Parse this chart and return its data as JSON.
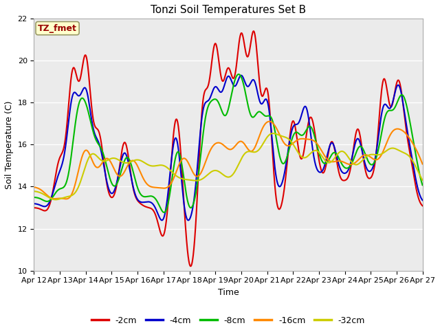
{
  "title": "Tonzi Soil Temperatures Set B",
  "xlabel": "Time",
  "ylabel": "Soil Temperature (C)",
  "ylim": [
    10,
    22
  ],
  "yticks": [
    10,
    12,
    14,
    16,
    18,
    20,
    22
  ],
  "x_tick_labels": [
    "Apr 12",
    "Apr 13",
    "Apr 14",
    "Apr 15",
    "Apr 16",
    "Apr 17",
    "Apr 18",
    "Apr 19",
    "Apr 20",
    "Apr 21",
    "Apr 22",
    "Apr 23",
    "Apr 24",
    "Apr 25",
    "Apr 26",
    "Apr 27"
  ],
  "series_colors": {
    "-2cm": "#dd0000",
    "-4cm": "#0000cc",
    "-8cm": "#00bb00",
    "-16cm": "#ff8800",
    "-32cm": "#cccc00"
  },
  "annotation_label": "TZ_fmet",
  "annotation_color": "#990000",
  "annotation_bg": "#ffffcc",
  "annotation_border": "#999966",
  "fig_facecolor": "#ffffff",
  "ax_facecolor": "#ebebeb",
  "grid_color": "#ffffff",
  "linewidth": 1.5,
  "title_fontsize": 11,
  "axis_fontsize": 9,
  "tick_fontsize": 8
}
